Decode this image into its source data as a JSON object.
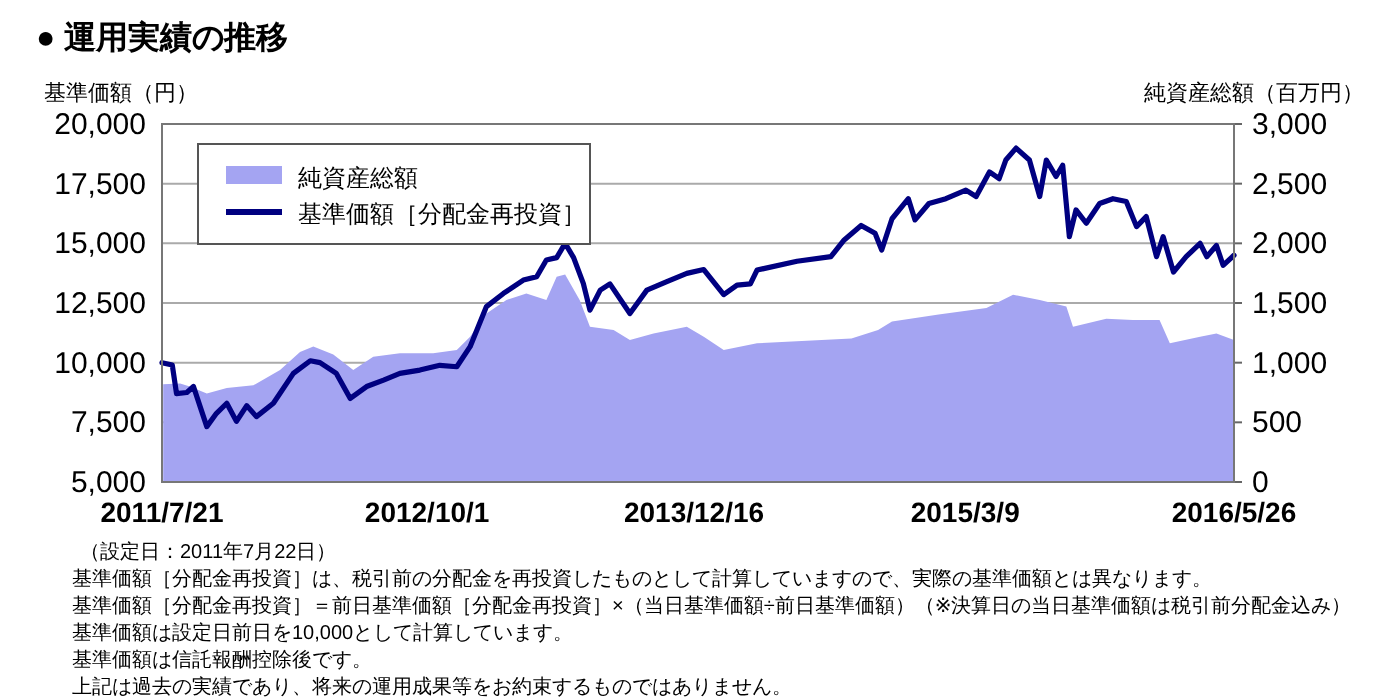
{
  "chart_data": {
    "type": "line",
    "title": "● 運用実績の推移",
    "ylabel": "基準価額（円）",
    "y2label": "純資産総額（百万円）",
    "xlim": [
      "2011-07-21",
      "2016-05-26"
    ],
    "xticks": [
      {
        "value": "2011-07-21",
        "label": "2011/7/21"
      },
      {
        "value": "2012-10-01",
        "label": "2012/10/1"
      },
      {
        "value": "2013-12-16",
        "label": "2013/12/16"
      },
      {
        "value": "2015-03-09",
        "label": "2015/3/9"
      },
      {
        "value": "2016-05-26",
        "label": "2016/5/26"
      }
    ],
    "ylim": [
      5000,
      20000
    ],
    "yticks": [
      {
        "value": 5000,
        "label": "5,000"
      },
      {
        "value": 7500,
        "label": "7,500"
      },
      {
        "value": 10000,
        "label": "10,000"
      },
      {
        "value": 12500,
        "label": "12,500"
      },
      {
        "value": 15000,
        "label": "15,000"
      },
      {
        "value": 17500,
        "label": "17,500"
      },
      {
        "value": 20000,
        "label": "20,000"
      }
    ],
    "y2lim": [
      0,
      3000
    ],
    "y2ticks": [
      0,
      500,
      {
        "value": 1000,
        "label": "1,000"
      },
      {
        "value": 1500,
        "label": "1,500"
      },
      {
        "value": 2000,
        "label": "2,000"
      },
      {
        "value": 2500,
        "label": "2,500"
      },
      {
        "value": 3000,
        "label": "3,000"
      }
    ],
    "grid": "y",
    "legend": "top left",
    "series": [
      {
        "name": "純資産総額",
        "type": "area",
        "axis": "y2",
        "color": "#a4a4f2",
        "x": [
          "2011-07-23",
          "2011-08-20",
          "2011-09-05",
          "2011-10-03",
          "2011-11-05",
          "2011-12-19",
          "2012-02-01",
          "2012-03-05",
          "2012-03-27",
          "2012-04-29",
          "2012-06-01",
          "2012-07-04",
          "2012-08-17",
          "2012-10-11",
          "2012-11-19",
          "2012-12-11",
          "2013-01-07",
          "2013-02-09",
          "2013-03-14",
          "2013-04-16",
          "2013-05-03",
          "2013-05-17",
          "2013-06-10",
          "2013-06-27",
          "2013-08-05",
          "2013-09-01",
          "2013-10-10",
          "2013-12-04",
          "2014-01-01",
          "2014-02-03",
          "2014-03-30",
          "2014-09-02",
          "2014-10-16",
          "2014-11-08",
          "2015-01-24",
          "2015-04-13",
          "2015-05-27",
          "2015-07-10",
          "2015-08-23",
          "2015-09-03",
          "2015-10-28",
          "2015-12-11",
          "2016-01-24",
          "2016-02-10",
          "2016-03-31",
          "2016-04-27",
          "2016-05-26"
        ],
        "values": [
          820,
          826,
          800,
          742,
          788,
          810,
          938,
          1089,
          1135,
          1068,
          938,
          1050,
          1078,
          1078,
          1106,
          1218,
          1413,
          1525,
          1580,
          1525,
          1721,
          1738,
          1525,
          1302,
          1274,
          1190,
          1245,
          1302,
          1218,
          1106,
          1162,
          1202,
          1274,
          1346,
          1403,
          1458,
          1570,
          1525,
          1470,
          1302,
          1369,
          1358,
          1358,
          1162,
          1218,
          1245,
          1190
        ]
      },
      {
        "name": "基準価額［分配金再投資］",
        "color": "#000080",
        "x": [
          "2011-07-21",
          "2011-08-07",
          "2011-08-14",
          "2011-08-31",
          "2011-09-11",
          "2011-09-22",
          "2011-10-03",
          "2011-10-19",
          "2011-11-05",
          "2011-11-21",
          "2011-12-08",
          "2011-12-24",
          "2012-01-21",
          "2012-02-23",
          "2012-03-22",
          "2012-04-07",
          "2012-05-04",
          "2012-05-27",
          "2012-06-23",
          "2012-07-21",
          "2012-08-17",
          "2012-09-19",
          "2012-10-22",
          "2012-11-19",
          "2012-12-11",
          "2013-01-07",
          "2013-02-04",
          "2013-03-09",
          "2013-03-31",
          "2013-04-16",
          "2013-05-03",
          "2013-05-17",
          "2013-05-31",
          "2013-06-16",
          "2013-06-27",
          "2013-07-14",
          "2013-07-30",
          "2013-09-01",
          "2013-09-29",
          "2013-11-01",
          "2013-12-04",
          "2014-01-01",
          "2014-02-03",
          "2014-02-25",
          "2014-03-19",
          "2014-03-30",
          "2014-06-04",
          "2014-07-30",
          "2014-08-21",
          "2014-09-18",
          "2014-10-11",
          "2014-10-22",
          "2014-11-08",
          "2014-12-05",
          "2014-12-16",
          "2015-01-08",
          "2015-02-05",
          "2015-03-10",
          "2015-03-27",
          "2015-04-18",
          "2015-05-04",
          "2015-05-15",
          "2015-06-01",
          "2015-06-23",
          "2015-07-10",
          "2015-07-21",
          "2015-08-06",
          "2015-08-17",
          "2015-08-28",
          "2015-09-08",
          "2015-09-25",
          "2015-10-17",
          "2015-11-08",
          "2015-11-30",
          "2015-12-17",
          "2016-01-02",
          "2016-01-19",
          "2016-01-30",
          "2016-02-16",
          "2016-03-08",
          "2016-03-31",
          "2016-04-11",
          "2016-04-27",
          "2016-05-08",
          "2016-05-26"
        ],
        "values": [
          10000,
          9900,
          8700,
          8750,
          9000,
          8160,
          7320,
          7880,
          8300,
          7540,
          8200,
          7740,
          8300,
          9550,
          10080,
          10000,
          9550,
          8500,
          9000,
          9270,
          9550,
          9690,
          9890,
          9830,
          10670,
          12350,
          12900,
          13460,
          13600,
          14300,
          14400,
          15000,
          14400,
          13320,
          12200,
          13040,
          13300,
          12060,
          13040,
          13400,
          13740,
          13900,
          12850,
          13250,
          13300,
          13880,
          14250,
          14440,
          15140,
          15750,
          15420,
          14720,
          16030,
          16870,
          15980,
          16670,
          16870,
          17230,
          16960,
          17990,
          17710,
          18490,
          18990,
          18490,
          16960,
          18490,
          17800,
          18270,
          15280,
          16400,
          15840,
          16670,
          16870,
          16750,
          15700,
          16120,
          14440,
          15280,
          13800,
          14440,
          15000,
          14440,
          14910,
          14080,
          14500
        ]
      }
    ],
    "annotations": [
      "（設定日：2011年7月22日）",
      "基準価額［分配金再投資］は、税引前の分配金を再投資したものとして計算していますので、実際の基準価額とは異なります。",
      "基準価額［分配金再投資］＝前日基準価額［分配金再投資］×（当日基準価額÷前日基準価額）（※決算日の当日基準価額は税引前分配金込み）",
      "基準価額は設定日前日を10,000として計算しています。",
      "基準価額は信託報酬控除後です。",
      "上記は過去の実績であり、将来の運用成果等をお約束するものではありません。"
    ]
  }
}
